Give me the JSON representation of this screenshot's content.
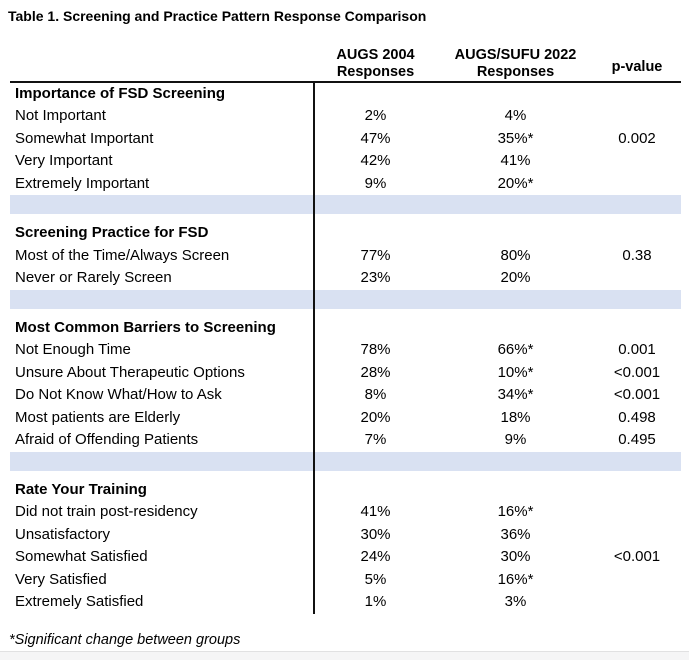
{
  "title": "Table 1. Screening and Practice Pattern Response Comparison",
  "columns": {
    "augs2004": {
      "line1": "AUGS 2004",
      "line2": "Responses"
    },
    "augs2022": {
      "line1": "AUGS/SUFU 2022",
      "line2": "Responses"
    },
    "pvalue": "p-value"
  },
  "sections": [
    {
      "header": "Importance of FSD Screening",
      "rows": [
        {
          "label": "Not Important",
          "augs2004": "2%",
          "augs2022": "4%",
          "p": ""
        },
        {
          "label": "Somewhat Important",
          "augs2004": "47%",
          "augs2022": "35%*",
          "p": "0.002"
        },
        {
          "label": "Very Important",
          "augs2004": "42%",
          "augs2022": "41%",
          "p": ""
        },
        {
          "label": "Extremely Important",
          "augs2004": "9%",
          "augs2022": "20%*",
          "p": ""
        }
      ]
    },
    {
      "header": "Screening Practice for FSD",
      "rows": [
        {
          "label": "Most of the Time/Always Screen",
          "augs2004": "77%",
          "augs2022": "80%",
          "p": "0.38"
        },
        {
          "label": "Never or Rarely Screen",
          "augs2004": "23%",
          "augs2022": "20%",
          "p": ""
        }
      ]
    },
    {
      "header": "Most Common Barriers to Screening",
      "rows": [
        {
          "label": "Not Enough Time",
          "augs2004": "78%",
          "augs2022": "66%*",
          "p": "0.001"
        },
        {
          "label": "Unsure About Therapeutic Options",
          "augs2004": "28%",
          "augs2022": "10%*",
          "p": "<0.001"
        },
        {
          "label": "Do Not Know What/How to Ask",
          "augs2004": "8%",
          "augs2022": "34%*",
          "p": "<0.001"
        },
        {
          "label": "Most patients are Elderly",
          "augs2004": "20%",
          "augs2022": "18%",
          "p": "0.498"
        },
        {
          "label": "Afraid of Offending Patients",
          "augs2004": "7%",
          "augs2022": "9%",
          "p": "0.495"
        }
      ]
    },
    {
      "header": "Rate Your Training",
      "rows": [
        {
          "label": "Did not train post-residency",
          "augs2004": "41%",
          "augs2022": "16%*",
          "p": ""
        },
        {
          "label": "Unsatisfactory",
          "augs2004": "30%",
          "augs2022": "36%",
          "p": ""
        },
        {
          "label": "Somewhat Satisfied",
          "augs2004": "24%",
          "augs2022": "30%",
          "p": "<0.001"
        },
        {
          "label": "Very Satisfied",
          "augs2004": "5%",
          "augs2022": "16%*",
          "p": ""
        },
        {
          "label": "Extremely Satisfied",
          "augs2004": "1%",
          "augs2022": "3%",
          "p": ""
        }
      ]
    }
  ],
  "footnote": "*Significant change between groups",
  "colors": {
    "separator_row": "#d9e1f2",
    "rule": "#111111",
    "bottom_band": "#f5f5f6",
    "bottom_band_border": "#e1e1e2"
  }
}
